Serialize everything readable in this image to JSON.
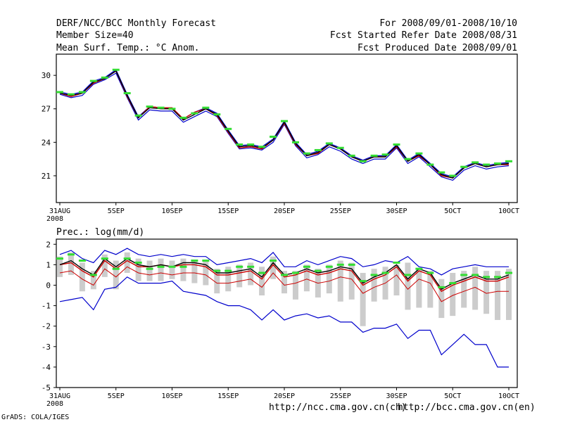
{
  "header": {
    "title": "DERF/NCC/BCC Monthly Forecast",
    "member": "Member Size=40",
    "variable": "Mean Surf. Temp.: °C Anom.",
    "period": "For 2008/09/01-2008/10/10",
    "start": "Fcst Started Refer Date 2008/08/31",
    "produced": "Fcst Produced Date 2008/09/01"
  },
  "footer": {
    "ncc_url": "http://ncc.cma.gov.cn(ch)",
    "bcc_url": "http://bcc.cma.gov.cn(en)",
    "brand": "GrADS: COLA/IGES"
  },
  "colors": {
    "max": "#0000cc",
    "mean": "#cc0000",
    "ensemble": "#000000",
    "observed": "#33dd33",
    "spread": "#cccccc"
  },
  "chart_data": [
    {
      "type": "line",
      "title": "Mean Surf. Temp.: °C Anom.",
      "x": [
        0,
        1,
        2,
        3,
        4,
        5,
        6,
        7,
        8,
        9,
        10,
        11,
        12,
        13,
        14,
        15,
        16,
        17,
        18,
        19,
        20,
        21,
        22,
        23,
        24,
        25,
        26,
        27,
        28,
        29,
        30,
        31,
        32,
        33,
        34,
        35,
        36,
        37,
        38,
        39,
        40
      ],
      "x_tick_positions": [
        0,
        5,
        10,
        15,
        20,
        25,
        30,
        35,
        40
      ],
      "x_tick_labels": [
        "31AUG",
        "5SEP",
        "10SEP",
        "15SEP",
        "20SEP",
        "25SEP",
        "30SEP",
        "5OCT",
        "10OCT"
      ],
      "x_year_label": "2008",
      "xlim": [
        0,
        40
      ],
      "ylim": [
        18.6,
        31.9
      ],
      "y_ticks": [
        21,
        24,
        27,
        30
      ],
      "series": [
        {
          "name": "max",
          "values": [
            28.5,
            28.3,
            28.5,
            29.5,
            29.8,
            30.5,
            28.3,
            26.3,
            27.2,
            27.1,
            27.1,
            26.1,
            26.7,
            27.1,
            26.6,
            25.1,
            23.7,
            23.8,
            23.6,
            24.3,
            25.9,
            24.0,
            22.9,
            23.2,
            23.9,
            23.5,
            22.8,
            22.4,
            22.8,
            22.8,
            23.8,
            22.4,
            23.0,
            22.1,
            21.2,
            20.9,
            21.8,
            22.2,
            21.9,
            22.1,
            22.2
          ]
        },
        {
          "name": "ensemble",
          "values": [
            28.4,
            28.2,
            28.4,
            29.4,
            29.7,
            30.4,
            28.2,
            26.2,
            27.1,
            27.0,
            27.0,
            26.0,
            26.5,
            27.0,
            26.5,
            25.0,
            23.6,
            23.7,
            23.5,
            24.2,
            25.8,
            23.9,
            22.8,
            23.1,
            23.8,
            23.4,
            22.7,
            22.3,
            22.7,
            22.7,
            23.7,
            22.3,
            22.9,
            22.0,
            21.1,
            20.8,
            21.7,
            22.1,
            21.8,
            22.0,
            22.1
          ]
        },
        {
          "name": "mean",
          "values": [
            28.4,
            28.1,
            28.4,
            29.3,
            29.7,
            30.4,
            28.1,
            26.2,
            27.2,
            27.1,
            27.1,
            26.1,
            26.7,
            27.0,
            26.4,
            24.9,
            23.5,
            23.6,
            23.4,
            24.2,
            25.7,
            23.8,
            22.8,
            23.0,
            23.8,
            23.4,
            22.7,
            22.3,
            22.7,
            22.7,
            23.6,
            22.3,
            22.8,
            22.0,
            21.0,
            20.8,
            21.7,
            22.1,
            21.8,
            22.0,
            22.0
          ]
        },
        {
          "name": "min",
          "values": [
            28.3,
            28.0,
            28.2,
            29.2,
            29.6,
            30.2,
            28.0,
            26.0,
            26.9,
            26.8,
            26.8,
            25.8,
            26.3,
            26.8,
            26.3,
            24.8,
            23.4,
            23.5,
            23.3,
            24.0,
            25.6,
            23.7,
            22.6,
            22.9,
            23.6,
            23.2,
            22.5,
            22.1,
            22.5,
            22.5,
            23.5,
            22.1,
            22.7,
            21.8,
            20.9,
            20.6,
            21.5,
            21.9,
            21.6,
            21.8,
            21.9
          ]
        },
        {
          "name": "observed",
          "values": [
            28.5,
            28.3,
            28.5,
            29.5,
            29.8,
            30.5,
            28.4,
            26.4,
            27.2,
            27.1,
            27.0,
            26.2,
            26.6,
            27.1,
            26.5,
            25.2,
            23.8,
            23.8,
            23.6,
            24.5,
            25.9,
            24.0,
            23.0,
            23.3,
            23.9,
            23.5,
            22.8,
            22.3,
            22.8,
            22.9,
            23.8,
            22.5,
            23.0,
            22.0,
            21.3,
            21.0,
            21.8,
            22.2,
            22.0,
            22.1,
            22.3
          ]
        }
      ]
    },
    {
      "type": "line",
      "title": "Prec.: log(mm/d)",
      "x": [
        0,
        1,
        2,
        3,
        4,
        5,
        6,
        7,
        8,
        9,
        10,
        11,
        12,
        13,
        14,
        15,
        16,
        17,
        18,
        19,
        20,
        21,
        22,
        23,
        24,
        25,
        26,
        27,
        28,
        29,
        30,
        31,
        32,
        33,
        34,
        35,
        36,
        37,
        38,
        39,
        40
      ],
      "x_tick_positions": [
        0,
        5,
        10,
        15,
        20,
        25,
        30,
        35,
        40
      ],
      "x_tick_labels": [
        "31AUG",
        "5SEP",
        "10SEP",
        "15SEP",
        "20SEP",
        "25SEP",
        "30SEP",
        "5OCT",
        "10OCT"
      ],
      "x_year_label": "2008",
      "xlim": [
        0,
        40
      ],
      "ylim": [
        -5,
        2.25
      ],
      "y_ticks": [
        -5,
        -4,
        -3,
        -2,
        -1,
        0,
        1,
        2
      ],
      "series": [
        {
          "name": "max",
          "values": [
            1.5,
            1.7,
            1.3,
            1.1,
            1.7,
            1.5,
            1.8,
            1.5,
            1.4,
            1.5,
            1.4,
            1.5,
            1.4,
            1.4,
            1.0,
            1.1,
            1.2,
            1.3,
            1.1,
            1.6,
            0.9,
            0.9,
            1.2,
            1.0,
            1.2,
            1.4,
            1.3,
            0.9,
            1.0,
            1.2,
            1.1,
            1.4,
            0.9,
            0.8,
            0.5,
            0.8,
            0.9,
            1.0,
            0.9,
            0.9,
            0.9
          ]
        },
        {
          "name": "ensemble",
          "values": [
            1.0,
            1.2,
            0.8,
            0.5,
            1.3,
            0.9,
            1.3,
            1.0,
            0.9,
            1.0,
            0.9,
            1.1,
            1.1,
            1.0,
            0.6,
            0.6,
            0.7,
            0.8,
            0.4,
            1.1,
            0.5,
            0.6,
            0.8,
            0.6,
            0.7,
            0.9,
            0.8,
            0.1,
            0.4,
            0.6,
            1.0,
            0.3,
            0.8,
            0.6,
            -0.2,
            0.1,
            0.3,
            0.5,
            0.3,
            0.3,
            0.5
          ]
        },
        {
          "name": "mean",
          "values": [
            1.0,
            1.1,
            0.7,
            0.4,
            1.2,
            0.8,
            1.2,
            0.9,
            0.9,
            1.0,
            0.9,
            1.0,
            1.0,
            0.9,
            0.5,
            0.5,
            0.6,
            0.7,
            0.3,
            1.0,
            0.4,
            0.5,
            0.7,
            0.5,
            0.6,
            0.8,
            0.7,
            0.0,
            0.3,
            0.5,
            0.9,
            0.2,
            0.7,
            0.5,
            -0.3,
            0.0,
            0.2,
            0.4,
            0.2,
            0.2,
            0.4
          ]
        },
        {
          "name": "mean_lower",
          "values": [
            0.6,
            0.7,
            0.3,
            0.0,
            0.8,
            0.4,
            0.9,
            0.6,
            0.5,
            0.6,
            0.5,
            0.6,
            0.6,
            0.5,
            0.1,
            0.1,
            0.2,
            0.3,
            -0.1,
            0.6,
            0.0,
            0.1,
            0.3,
            0.1,
            0.2,
            0.4,
            0.3,
            -0.4,
            -0.1,
            0.1,
            0.5,
            -0.2,
            0.3,
            0.1,
            -0.8,
            -0.5,
            -0.3,
            -0.1,
            -0.4,
            -0.3,
            -0.3
          ]
        },
        {
          "name": "min",
          "values": [
            -0.8,
            -0.7,
            -0.6,
            -1.2,
            -0.2,
            -0.1,
            0.4,
            0.1,
            0.1,
            0.1,
            0.2,
            -0.3,
            -0.4,
            -0.5,
            -0.8,
            -1.0,
            -1.0,
            -1.2,
            -1.7,
            -1.2,
            -1.7,
            -1.5,
            -1.4,
            -1.6,
            -1.5,
            -1.8,
            -1.8,
            -2.3,
            -2.1,
            -2.1,
            -1.9,
            -2.6,
            -2.2,
            -2.2,
            -3.4,
            -2.9,
            -2.4,
            -2.9,
            -2.9,
            -4.0,
            -4.0
          ]
        },
        {
          "name": "observed",
          "values": [
            1.3,
            1.5,
            1.2,
            0.5,
            1.3,
            0.8,
            1.3,
            1.1,
            0.8,
            0.9,
            0.9,
            0.9,
            1.2,
            1.2,
            0.7,
            0.7,
            0.9,
            0.9,
            0.6,
            1.2,
            0.5,
            0.6,
            0.9,
            0.7,
            0.9,
            1.0,
            1.0,
            0.2,
            0.5,
            0.6,
            1.1,
            0.5,
            0.8,
            0.6,
            -0.1,
            0.1,
            0.5,
            0.5,
            0.4,
            0.4,
            0.6
          ]
        },
        {
          "name": "spread_top",
          "values": [
            1.4,
            1.6,
            1.1,
            0.7,
            1.5,
            1.2,
            1.6,
            1.3,
            1.2,
            1.3,
            1.2,
            1.3,
            1.2,
            1.2,
            0.8,
            0.9,
            1.0,
            1.1,
            0.9,
            1.4,
            0.7,
            0.7,
            1.0,
            0.8,
            1.0,
            1.2,
            1.1,
            0.6,
            0.8,
            0.9,
            1.0,
            1.1,
            0.8,
            0.7,
            0.3,
            0.6,
            0.7,
            0.9,
            0.7,
            0.7,
            0.8
          ]
        },
        {
          "name": "spread_bottom",
          "values": [
            0.4,
            0.5,
            -0.3,
            -0.2,
            0.4,
            -0.2,
            0.6,
            0.2,
            0.2,
            0.2,
            0.3,
            0.2,
            0.1,
            0.0,
            -0.4,
            -0.3,
            -0.1,
            0.0,
            -0.5,
            0.3,
            -0.4,
            -0.7,
            -0.3,
            -0.6,
            -0.4,
            -0.8,
            -0.7,
            -2.0,
            -0.8,
            -0.7,
            -0.5,
            -1.2,
            -1.1,
            -1.1,
            -1.6,
            -1.5,
            -1.1,
            -1.2,
            -1.4,
            -1.7,
            -1.7
          ]
        }
      ]
    }
  ],
  "axes": {
    "top_x_year": "2008",
    "bottom_x_year": "2008"
  }
}
